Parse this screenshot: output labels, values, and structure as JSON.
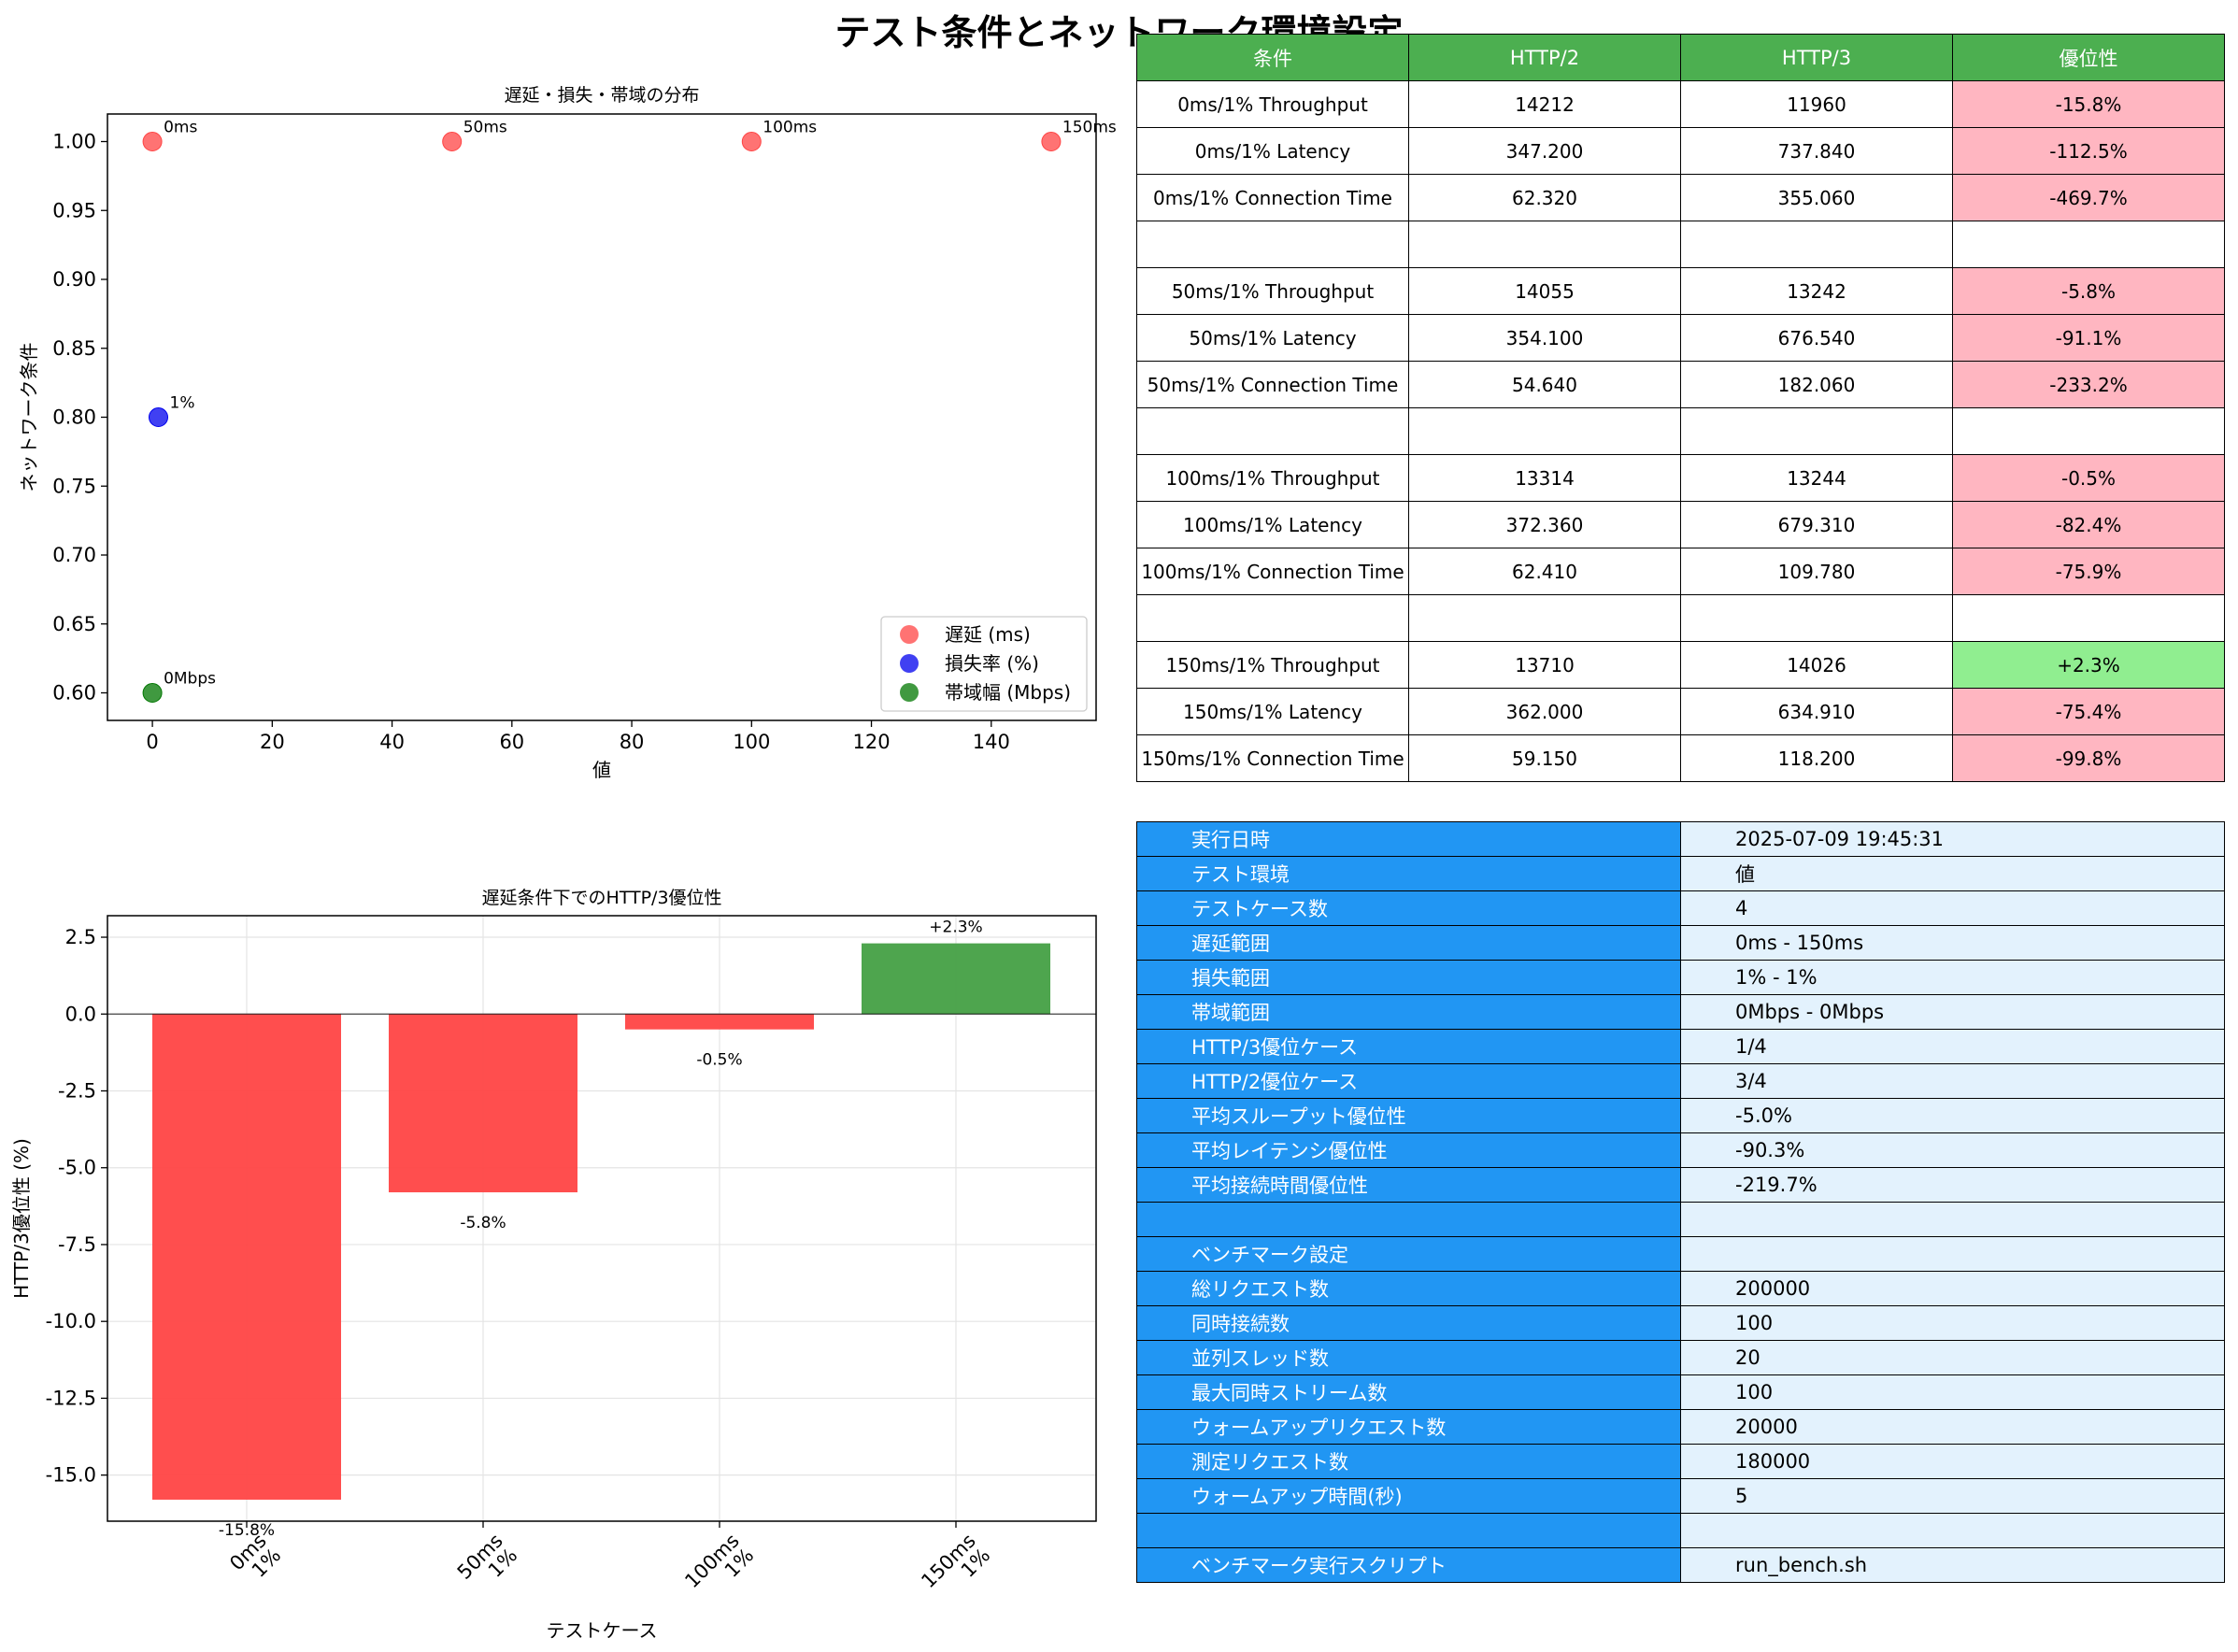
{
  "title": "テスト条件とネットワーク環境設定",
  "chart_data": [
    {
      "type": "scatter",
      "title": "遅延・損失・帯域の分布",
      "xlabel": "値",
      "ylabel": "ネットワーク条件",
      "xlim": [
        -7.5,
        157.5
      ],
      "ylim": [
        0.58,
        1.02
      ],
      "xticks": [
        0,
        20,
        40,
        60,
        80,
        100,
        120,
        140
      ],
      "yticks": [
        0.6,
        0.65,
        0.7,
        0.75,
        0.8,
        0.85,
        0.9,
        0.95,
        1.0
      ],
      "grid": false,
      "legend_position": "lower-right",
      "series": [
        {
          "name": "遅延 (ms)",
          "color": "#ff4444",
          "points": [
            {
              "x": 0,
              "y": 1.0,
              "label": "0ms"
            },
            {
              "x": 50,
              "y": 1.0,
              "label": "50ms"
            },
            {
              "x": 100,
              "y": 1.0,
              "label": "100ms"
            },
            {
              "x": 150,
              "y": 1.0,
              "label": "150ms"
            }
          ]
        },
        {
          "name": "損失率 (%)",
          "color": "#0000ee",
          "points": [
            {
              "x": 1,
              "y": 0.8,
              "label": "1%"
            }
          ]
        },
        {
          "name": "帯域幅 (Mbps)",
          "color": "#007700",
          "points": [
            {
              "x": 0,
              "y": 0.6,
              "label": "0Mbps"
            }
          ]
        }
      ]
    },
    {
      "type": "bar",
      "title": "遅延条件下でのHTTP/3優位性",
      "xlabel": "テストケース",
      "ylabel": "HTTP/3優位性 (%)",
      "ylim": [
        -16.5,
        3.2
      ],
      "yticks": [
        -15.0,
        -12.5,
        -10.0,
        -7.5,
        -5.0,
        -2.5,
        0.0,
        2.5
      ],
      "grid": true,
      "categories": [
        "0ms\n1%",
        "50ms\n1%",
        "100ms\n1%",
        "150ms\n1%"
      ],
      "values": [
        -15.8,
        -5.8,
        -0.5,
        2.3
      ],
      "value_labels": [
        "-15.8%",
        "-5.8%",
        "-0.5%",
        "+2.3%"
      ],
      "colors": {
        "negative": "#ff4444",
        "positive": "#44a044"
      }
    }
  ],
  "comparison_table": {
    "headers": [
      "条件",
      "HTTP/2",
      "HTTP/3",
      "優位性"
    ],
    "rows": [
      {
        "cells": [
          "0ms/1% Throughput",
          "14212",
          "11960",
          "-15.8%"
        ],
        "status": "neg"
      },
      {
        "cells": [
          "0ms/1% Latency",
          "347.200",
          "737.840",
          "-112.5%"
        ],
        "status": "neg"
      },
      {
        "cells": [
          "0ms/1% Connection Time",
          "62.320",
          "355.060",
          "-469.7%"
        ],
        "status": "neg"
      },
      {
        "cells": [
          "",
          "",
          "",
          ""
        ],
        "status": "blank"
      },
      {
        "cells": [
          "50ms/1% Throughput",
          "14055",
          "13242",
          "-5.8%"
        ],
        "status": "neg"
      },
      {
        "cells": [
          "50ms/1% Latency",
          "354.100",
          "676.540",
          "-91.1%"
        ],
        "status": "neg"
      },
      {
        "cells": [
          "50ms/1% Connection Time",
          "54.640",
          "182.060",
          "-233.2%"
        ],
        "status": "neg"
      },
      {
        "cells": [
          "",
          "",
          "",
          ""
        ],
        "status": "blank"
      },
      {
        "cells": [
          "100ms/1% Throughput",
          "13314",
          "13244",
          "-0.5%"
        ],
        "status": "neg"
      },
      {
        "cells": [
          "100ms/1% Latency",
          "372.360",
          "679.310",
          "-82.4%"
        ],
        "status": "neg"
      },
      {
        "cells": [
          "100ms/1% Connection Time",
          "62.410",
          "109.780",
          "-75.9%"
        ],
        "status": "neg"
      },
      {
        "cells": [
          "",
          "",
          "",
          ""
        ],
        "status": "blank"
      },
      {
        "cells": [
          "150ms/1% Throughput",
          "13710",
          "14026",
          "+2.3%"
        ],
        "status": "pos"
      },
      {
        "cells": [
          "150ms/1% Latency",
          "362.000",
          "634.910",
          "-75.4%"
        ],
        "status": "neg"
      },
      {
        "cells": [
          "150ms/1% Connection Time",
          "59.150",
          "118.200",
          "-99.8%"
        ],
        "status": "neg"
      }
    ],
    "colors": {
      "header": "#4caf50",
      "negative": "#ffb6c1",
      "positive": "#90ee90"
    }
  },
  "info_table": {
    "rows": [
      [
        "実行日時",
        "2025-07-09 19:45:31"
      ],
      [
        "テスト環境",
        "値"
      ],
      [
        "テストケース数",
        "4"
      ],
      [
        "遅延範囲",
        "0ms - 150ms"
      ],
      [
        "損失範囲",
        "1% - 1%"
      ],
      [
        "帯域範囲",
        "0Mbps - 0Mbps"
      ],
      [
        "HTTP/3優位ケース",
        "1/4"
      ],
      [
        "HTTP/2優位ケース",
        "3/4"
      ],
      [
        "平均スループット優位性",
        "-5.0%"
      ],
      [
        "平均レイテンシ優位性",
        "-90.3%"
      ],
      [
        "平均接続時間優位性",
        "-219.7%"
      ],
      [
        "",
        ""
      ],
      [
        "ベンチマーク設定",
        ""
      ],
      [
        "総リクエスト数",
        "200000"
      ],
      [
        "同時接続数",
        "100"
      ],
      [
        "並列スレッド数",
        "20"
      ],
      [
        "最大同時ストリーム数",
        "100"
      ],
      [
        "ウォームアップリクエスト数",
        "20000"
      ],
      [
        "測定リクエスト数",
        "180000"
      ],
      [
        "ウォームアップ時間(秒)",
        "5"
      ],
      [
        "",
        ""
      ],
      [
        "ベンチマーク実行スクリプト",
        "run_bench.sh"
      ]
    ],
    "colors": {
      "key": "#2196f3",
      "value": "#e3f2fd"
    }
  }
}
